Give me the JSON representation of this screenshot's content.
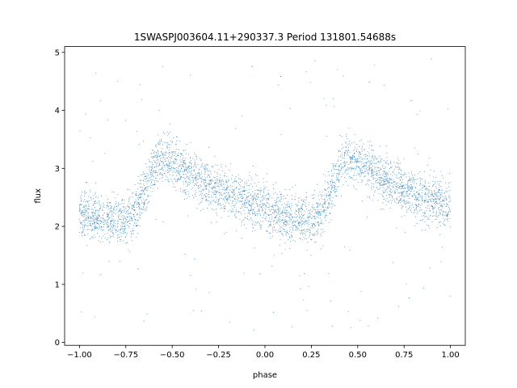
{
  "chart_data": {
    "type": "scatter",
    "title": "1SWASPJ003604.11+290337.3 Period 131801.54688s",
    "xlabel": "phase",
    "ylabel": "flux",
    "xlim": [
      -1.08,
      1.08
    ],
    "ylim": [
      -0.05,
      5.1
    ],
    "xticks": [
      -1.0,
      -0.75,
      -0.5,
      -0.25,
      0.0,
      0.25,
      0.5,
      0.75,
      1.0
    ],
    "xtick_labels": [
      "−1.00",
      "−0.75",
      "−0.50",
      "−0.25",
      "0.00",
      "0.25",
      "0.50",
      "0.75",
      "1.00"
    ],
    "yticks": [
      0,
      1,
      2,
      3,
      4,
      5
    ],
    "ytick_labels": [
      "0",
      "1",
      "2",
      "3",
      "4",
      "5"
    ],
    "grid": false,
    "marker_color": "#1f77b4",
    "light_curve_profile": [
      {
        "phase": 0.0,
        "flux": 2.2
      },
      {
        "phase": 0.1,
        "flux": 2.15
      },
      {
        "phase": 0.2,
        "flux": 2.1
      },
      {
        "phase": 0.28,
        "flux": 2.15
      },
      {
        "phase": 0.35,
        "flux": 2.6
      },
      {
        "phase": 0.42,
        "flux": 3.15
      },
      {
        "phase": 0.5,
        "flux": 3.1
      },
      {
        "phase": 0.6,
        "flux": 2.9
      },
      {
        "phase": 0.7,
        "flux": 2.7
      },
      {
        "phase": 0.8,
        "flux": 2.55
      },
      {
        "phase": 0.9,
        "flux": 2.45
      },
      {
        "phase": 1.0,
        "flux": 2.35
      }
    ]
  }
}
